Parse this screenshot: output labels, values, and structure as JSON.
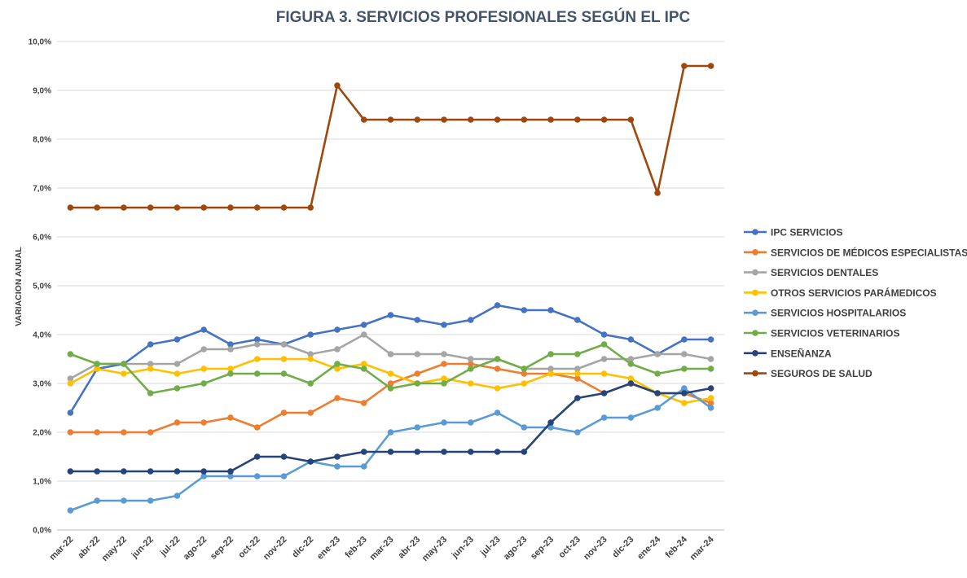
{
  "chart_data": {
    "type": "line",
    "title": "FIGURA 3. SERVICIOS PROFESIONALES SEGÚN EL IPC",
    "ylabel": "VARIACION ANUAL",
    "xlabel": "",
    "ylim": [
      0,
      10
    ],
    "yticks": [
      0,
      1,
      2,
      3,
      4,
      5,
      6,
      7,
      8,
      9,
      10
    ],
    "ytick_labels": [
      "0,0%",
      "1,0%",
      "2,0%",
      "3,0%",
      "4,0%",
      "5,0%",
      "6,0%",
      "7,0%",
      "8,0%",
      "9,0%",
      "10,0%"
    ],
    "grid": true,
    "legend_position": "right",
    "categories": [
      "mar-22",
      "abr-22",
      "may-22",
      "jun-22",
      "jul-22",
      "ago-22",
      "sep-22",
      "oct-22",
      "nov-22",
      "dic-22",
      "ene-23",
      "feb-23",
      "mar-23",
      "abr-23",
      "may-23",
      "jun-23",
      "jul-23",
      "ago-23",
      "sep-23",
      "oct-23",
      "nov-23",
      "dic-23",
      "ene-24",
      "feb-24",
      "mar-24"
    ],
    "series": [
      {
        "name": "IPC SERVICIOS",
        "color": "#4472c4",
        "values": [
          2.4,
          3.3,
          3.4,
          3.8,
          3.9,
          4.1,
          3.8,
          3.9,
          3.8,
          4.0,
          4.1,
          4.2,
          4.4,
          4.3,
          4.2,
          4.3,
          4.6,
          4.5,
          4.5,
          4.3,
          4.0,
          3.9,
          3.6,
          3.9,
          3.9
        ]
      },
      {
        "name": "SERVICIOS DE MÉDICOS ESPECIALISTAS",
        "color": "#ed7d31",
        "values": [
          2.0,
          2.0,
          2.0,
          2.0,
          2.2,
          2.2,
          2.3,
          2.1,
          2.4,
          2.4,
          2.7,
          2.6,
          3.0,
          3.2,
          3.4,
          3.4,
          3.3,
          3.2,
          3.2,
          3.1,
          2.8,
          3.0,
          2.8,
          2.8,
          2.6
        ]
      },
      {
        "name": "SERVICIOS DENTALES",
        "color": "#a5a5a5",
        "values": [
          3.1,
          3.4,
          3.4,
          3.4,
          3.4,
          3.7,
          3.7,
          3.8,
          3.8,
          3.6,
          3.7,
          4.0,
          3.6,
          3.6,
          3.6,
          3.5,
          3.5,
          3.3,
          3.3,
          3.3,
          3.5,
          3.5,
          3.6,
          3.6,
          3.5
        ]
      },
      {
        "name": "OTROS SERVICIOS PARÁMEDICOS",
        "color": "#ffc000",
        "values": [
          3.0,
          3.3,
          3.2,
          3.3,
          3.2,
          3.3,
          3.3,
          3.5,
          3.5,
          3.5,
          3.3,
          3.4,
          3.2,
          3.0,
          3.1,
          3.0,
          2.9,
          3.0,
          3.2,
          3.2,
          3.2,
          3.1,
          2.8,
          2.6,
          2.7
        ]
      },
      {
        "name": "SERVICIOS HOSPITALARIOS",
        "color": "#5b9bd5",
        "values": [
          0.4,
          0.6,
          0.6,
          0.6,
          0.7,
          1.1,
          1.1,
          1.1,
          1.1,
          1.4,
          1.3,
          1.3,
          2.0,
          2.1,
          2.2,
          2.2,
          2.4,
          2.1,
          2.1,
          2.0,
          2.3,
          2.3,
          2.5,
          2.9,
          2.5
        ]
      },
      {
        "name": "SERVICIOS VETERINARIOS",
        "color": "#70ad47",
        "values": [
          3.6,
          3.4,
          3.4,
          2.8,
          2.9,
          3.0,
          3.2,
          3.2,
          3.2,
          3.0,
          3.4,
          3.3,
          2.9,
          3.0,
          3.0,
          3.3,
          3.5,
          3.3,
          3.6,
          3.6,
          3.8,
          3.4,
          3.2,
          3.3,
          3.3
        ]
      },
      {
        "name": "ENSEÑANZA",
        "color": "#264478",
        "values": [
          1.2,
          1.2,
          1.2,
          1.2,
          1.2,
          1.2,
          1.2,
          1.5,
          1.5,
          1.4,
          1.5,
          1.6,
          1.6,
          1.6,
          1.6,
          1.6,
          1.6,
          1.6,
          2.2,
          2.7,
          2.8,
          3.0,
          2.8,
          2.8,
          2.9
        ]
      },
      {
        "name": "SEGUROS DE SALUD",
        "color": "#9e480e",
        "values": [
          6.6,
          6.6,
          6.6,
          6.6,
          6.6,
          6.6,
          6.6,
          6.6,
          6.6,
          6.6,
          9.1,
          8.4,
          8.4,
          8.4,
          8.4,
          8.4,
          8.4,
          8.4,
          8.4,
          8.4,
          8.4,
          8.4,
          6.9,
          9.5,
          9.5
        ]
      }
    ]
  }
}
